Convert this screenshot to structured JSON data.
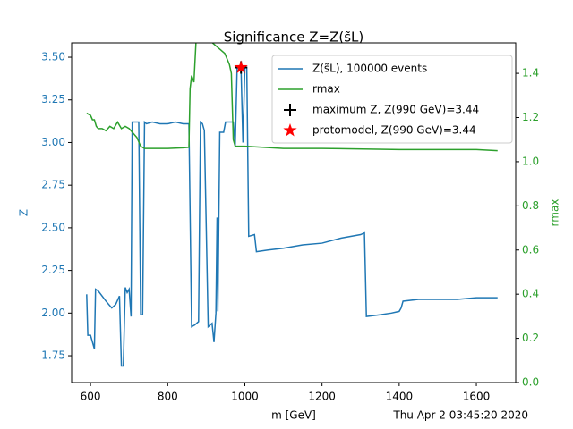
{
  "chart_data": {
    "type": "line",
    "title": "Significance Z=Z(s̃L)",
    "x_label": "m [GeV]",
    "y_label": "Z",
    "y2_label": "rmax",
    "annotation": "Thu Apr  2 03:45:20 2020",
    "xlim": [
      551,
      1702
    ],
    "ylim": [
      1.593,
      3.584
    ],
    "y2lim": [
      0,
      1.538
    ],
    "xticks": [
      600,
      800,
      1000,
      1200,
      1400,
      1600
    ],
    "yticks": [
      1.75,
      {
        "value": 2,
        "label": "2.00"
      },
      2.25,
      {
        "value": 2.5,
        "label": "2.50"
      },
      2.75,
      {
        "value": 3,
        "label": "3.00"
      },
      3.25,
      {
        "value": 3.5,
        "label": "3.50"
      }
    ],
    "y2ticks": [
      {
        "value": 0,
        "label": "0.0"
      },
      0.2,
      0.4,
      0.6,
      0.8,
      {
        "value": 1,
        "label": "1.0"
      },
      1.2,
      1.4
    ],
    "y_color": "#1f77b4",
    "y2_color": "#2ca02c",
    "series": [
      {
        "name": "Z(s̃L), 100000 events",
        "color": "#1f77b4",
        "axis": "y",
        "marker": "none",
        "x": [
          590,
          593,
          600,
          610,
          613,
          620,
          640,
          655,
          665,
          675,
          680,
          685,
          690,
          695,
          700,
          705,
          708,
          725,
          730,
          735,
          740,
          745,
          760,
          780,
          800,
          820,
          840,
          855,
          858,
          862,
          870,
          880,
          885,
          890,
          895,
          905,
          910,
          915,
          920,
          925,
          928,
          930,
          935,
          945,
          950,
          960,
          970,
          975,
          980,
          990,
          995,
          1000,
          1005,
          1010,
          1025,
          1030,
          1060,
          1100,
          1150,
          1200,
          1250,
          1300,
          1310,
          1315,
          1350,
          1380,
          1400,
          1405,
          1410,
          1450,
          1500,
          1550,
          1600,
          1655
        ],
        "values": [
          2.11,
          1.87,
          1.87,
          1.79,
          2.14,
          2.13,
          2.07,
          2.03,
          2.05,
          2.1,
          1.69,
          1.69,
          2.15,
          2.12,
          2.14,
          1.98,
          3.12,
          3.12,
          1.99,
          1.99,
          3.12,
          3.11,
          3.12,
          3.11,
          3.11,
          3.12,
          3.11,
          3.11,
          2.6,
          1.92,
          1.93,
          1.95,
          3.12,
          3.11,
          3.07,
          1.92,
          1.93,
          1.94,
          1.83,
          2.0,
          2.56,
          2.01,
          3.06,
          3.06,
          3.12,
          3.12,
          3.12,
          2.98,
          3.44,
          3.44,
          3.0,
          3.44,
          3.44,
          2.45,
          2.46,
          2.36,
          2.37,
          2.38,
          2.4,
          2.41,
          2.44,
          2.46,
          2.47,
          1.98,
          1.99,
          2.0,
          2.01,
          2.03,
          2.07,
          2.08,
          2.08,
          2.08,
          2.09,
          2.09
        ]
      },
      {
        "name": "rmax",
        "color": "#2ca02c",
        "axis": "y2",
        "marker": "none",
        "x": [
          590,
          600,
          605,
          610,
          615,
          620,
          630,
          640,
          650,
          660,
          670,
          680,
          690,
          700,
          720,
          730,
          740,
          760,
          800,
          840,
          855,
          858,
          862,
          868,
          875,
          948,
          960,
          965,
          970,
          975,
          1000,
          1050,
          1100,
          1200,
          1400,
          1600,
          1655
        ],
        "values": [
          1.22,
          1.21,
          1.19,
          1.19,
          1.16,
          1.15,
          1.15,
          1.14,
          1.16,
          1.15,
          1.18,
          1.15,
          1.16,
          1.15,
          1.11,
          1.07,
          1.06,
          1.06,
          1.06,
          1.063,
          1.065,
          1.33,
          1.39,
          1.36,
          1.6,
          1.49,
          1.44,
          1.4,
          1.1,
          1.07,
          1.07,
          1.065,
          1.06,
          1.06,
          1.055,
          1.055,
          1.05
        ]
      },
      {
        "name": "maximum Z, Z(990 GeV)=3.44",
        "color": "#000000",
        "axis": "y",
        "marker": "+",
        "x": [
          990
        ],
        "values": [
          3.44
        ]
      },
      {
        "name": "protomodel, Z(990 GeV)=3.44",
        "color": "#ff0000",
        "axis": "y",
        "marker": "*",
        "x": [
          990
        ],
        "values": [
          3.44
        ]
      }
    ]
  }
}
